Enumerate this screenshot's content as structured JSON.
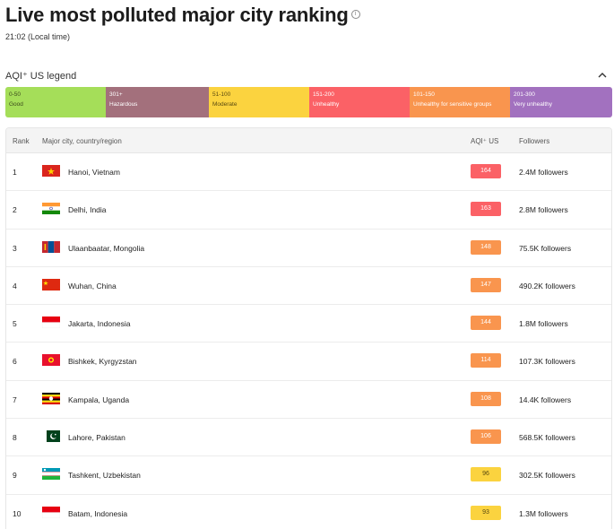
{
  "header": {
    "title": "Live most polluted major city ranking",
    "time": "21:02 (Local time)"
  },
  "legend": {
    "title": "AQI⁺ US legend",
    "segments": [
      {
        "range": "0-50",
        "label": "Good",
        "color": "#a5de59",
        "text_color": "#3b4a1c"
      },
      {
        "range": "301+",
        "label": "Hazardous",
        "color": "#a3707c",
        "text_color": "#ffffff"
      },
      {
        "range": "51-100",
        "label": "Moderate",
        "color": "#fbd33f",
        "text_color": "#5a4a10"
      },
      {
        "range": "151-200",
        "label": "Unhealthy",
        "color": "#fb6166",
        "text_color": "#ffffff"
      },
      {
        "range": "101-150",
        "label": "Unhealthy for sensitive groups",
        "color": "#f9954e",
        "text_color": "#ffffff"
      },
      {
        "range": "201-300",
        "label": "Very unhealthy",
        "color": "#a271bf",
        "text_color": "#ffffff"
      }
    ]
  },
  "table": {
    "headers": {
      "rank": "Rank",
      "city": "Major city, country/region",
      "aqi": "AQI⁺ US",
      "followers": "Followers"
    },
    "rows": [
      {
        "rank": "1",
        "city": "Hanoi, Vietnam",
        "flag": "vietnam-flag",
        "aqi": "164",
        "aqi_color": "#fb6166",
        "aqi_text": "#ffffff",
        "followers": "2.4M followers"
      },
      {
        "rank": "2",
        "city": "Delhi, India",
        "flag": "india-flag",
        "aqi": "163",
        "aqi_color": "#fb6166",
        "aqi_text": "#ffffff",
        "followers": "2.8M followers"
      },
      {
        "rank": "3",
        "city": "Ulaanbaatar, Mongolia",
        "flag": "mongolia-flag",
        "aqi": "148",
        "aqi_color": "#f9954e",
        "aqi_text": "#ffffff",
        "followers": "75.5K followers"
      },
      {
        "rank": "4",
        "city": "Wuhan, China",
        "flag": "china-flag",
        "aqi": "147",
        "aqi_color": "#f9954e",
        "aqi_text": "#ffffff",
        "followers": "490.2K followers"
      },
      {
        "rank": "5",
        "city": "Jakarta, Indonesia",
        "flag": "indonesia-flag",
        "aqi": "144",
        "aqi_color": "#f9954e",
        "aqi_text": "#ffffff",
        "followers": "1.8M followers"
      },
      {
        "rank": "6",
        "city": "Bishkek, Kyrgyzstan",
        "flag": "kyrgyzstan-flag",
        "aqi": "114",
        "aqi_color": "#f9954e",
        "aqi_text": "#ffffff",
        "followers": "107.3K followers"
      },
      {
        "rank": "7",
        "city": "Kampala, Uganda",
        "flag": "uganda-flag",
        "aqi": "108",
        "aqi_color": "#f9954e",
        "aqi_text": "#ffffff",
        "followers": "14.4K followers"
      },
      {
        "rank": "8",
        "city": "Lahore, Pakistan",
        "flag": "pakistan-flag",
        "aqi": "106",
        "aqi_color": "#f9954e",
        "aqi_text": "#ffffff",
        "followers": "568.5K followers"
      },
      {
        "rank": "9",
        "city": "Tashkent, Uzbekistan",
        "flag": "uzbekistan-flag",
        "aqi": "96",
        "aqi_color": "#fbd33f",
        "aqi_text": "#5a4a10",
        "followers": "302.5K followers"
      },
      {
        "rank": "10",
        "city": "Batam, Indonesia",
        "flag": "indonesia-flag",
        "aqi": "93",
        "aqi_color": "#fbd33f",
        "aqi_text": "#5a4a10",
        "followers": "1.3M followers"
      }
    ]
  }
}
